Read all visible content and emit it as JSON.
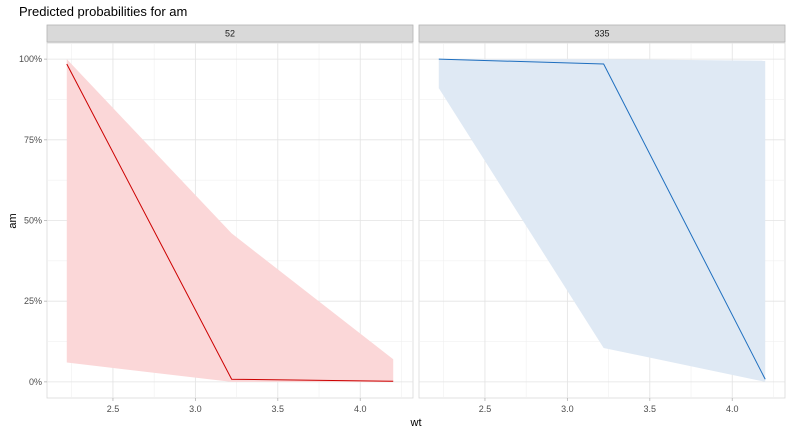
{
  "chart_data": {
    "type": "line",
    "title": "Predicted probabilities for am",
    "xlabel": "wt",
    "ylabel": "am",
    "xlim": [
      2.1,
      4.32
    ],
    "ylim": [
      -0.05,
      1.05
    ],
    "x_ticks": [
      2.5,
      3.0,
      3.5,
      4.0
    ],
    "x_tick_labels": [
      "2.5",
      "3.0",
      "3.5",
      "4.0"
    ],
    "y_ticks": [
      0,
      0.25,
      0.5,
      0.75,
      1.0
    ],
    "y_tick_labels": [
      "0%",
      "25%",
      "50%",
      "75%",
      "100%"
    ],
    "grid": true,
    "legend": "none",
    "panels": [
      {
        "strip": "52",
        "color": "#cc0000",
        "fill": "#fbd7d8",
        "x": [
          2.22,
          3.22,
          4.2
        ],
        "y": [
          0.985,
          0.008,
          0.002
        ],
        "ci_low": [
          0.06,
          0.0,
          0.0
        ],
        "ci_high": [
          1.0,
          0.46,
          0.07
        ]
      },
      {
        "strip": "335",
        "color": "#1f6fbf",
        "fill": "#dfe9f4",
        "x": [
          2.22,
          3.22,
          4.2
        ],
        "y": [
          1.0,
          0.985,
          0.008
        ],
        "ci_low": [
          0.91,
          0.105,
          0.0
        ],
        "ci_high": [
          1.0,
          1.0,
          0.995
        ]
      }
    ]
  }
}
